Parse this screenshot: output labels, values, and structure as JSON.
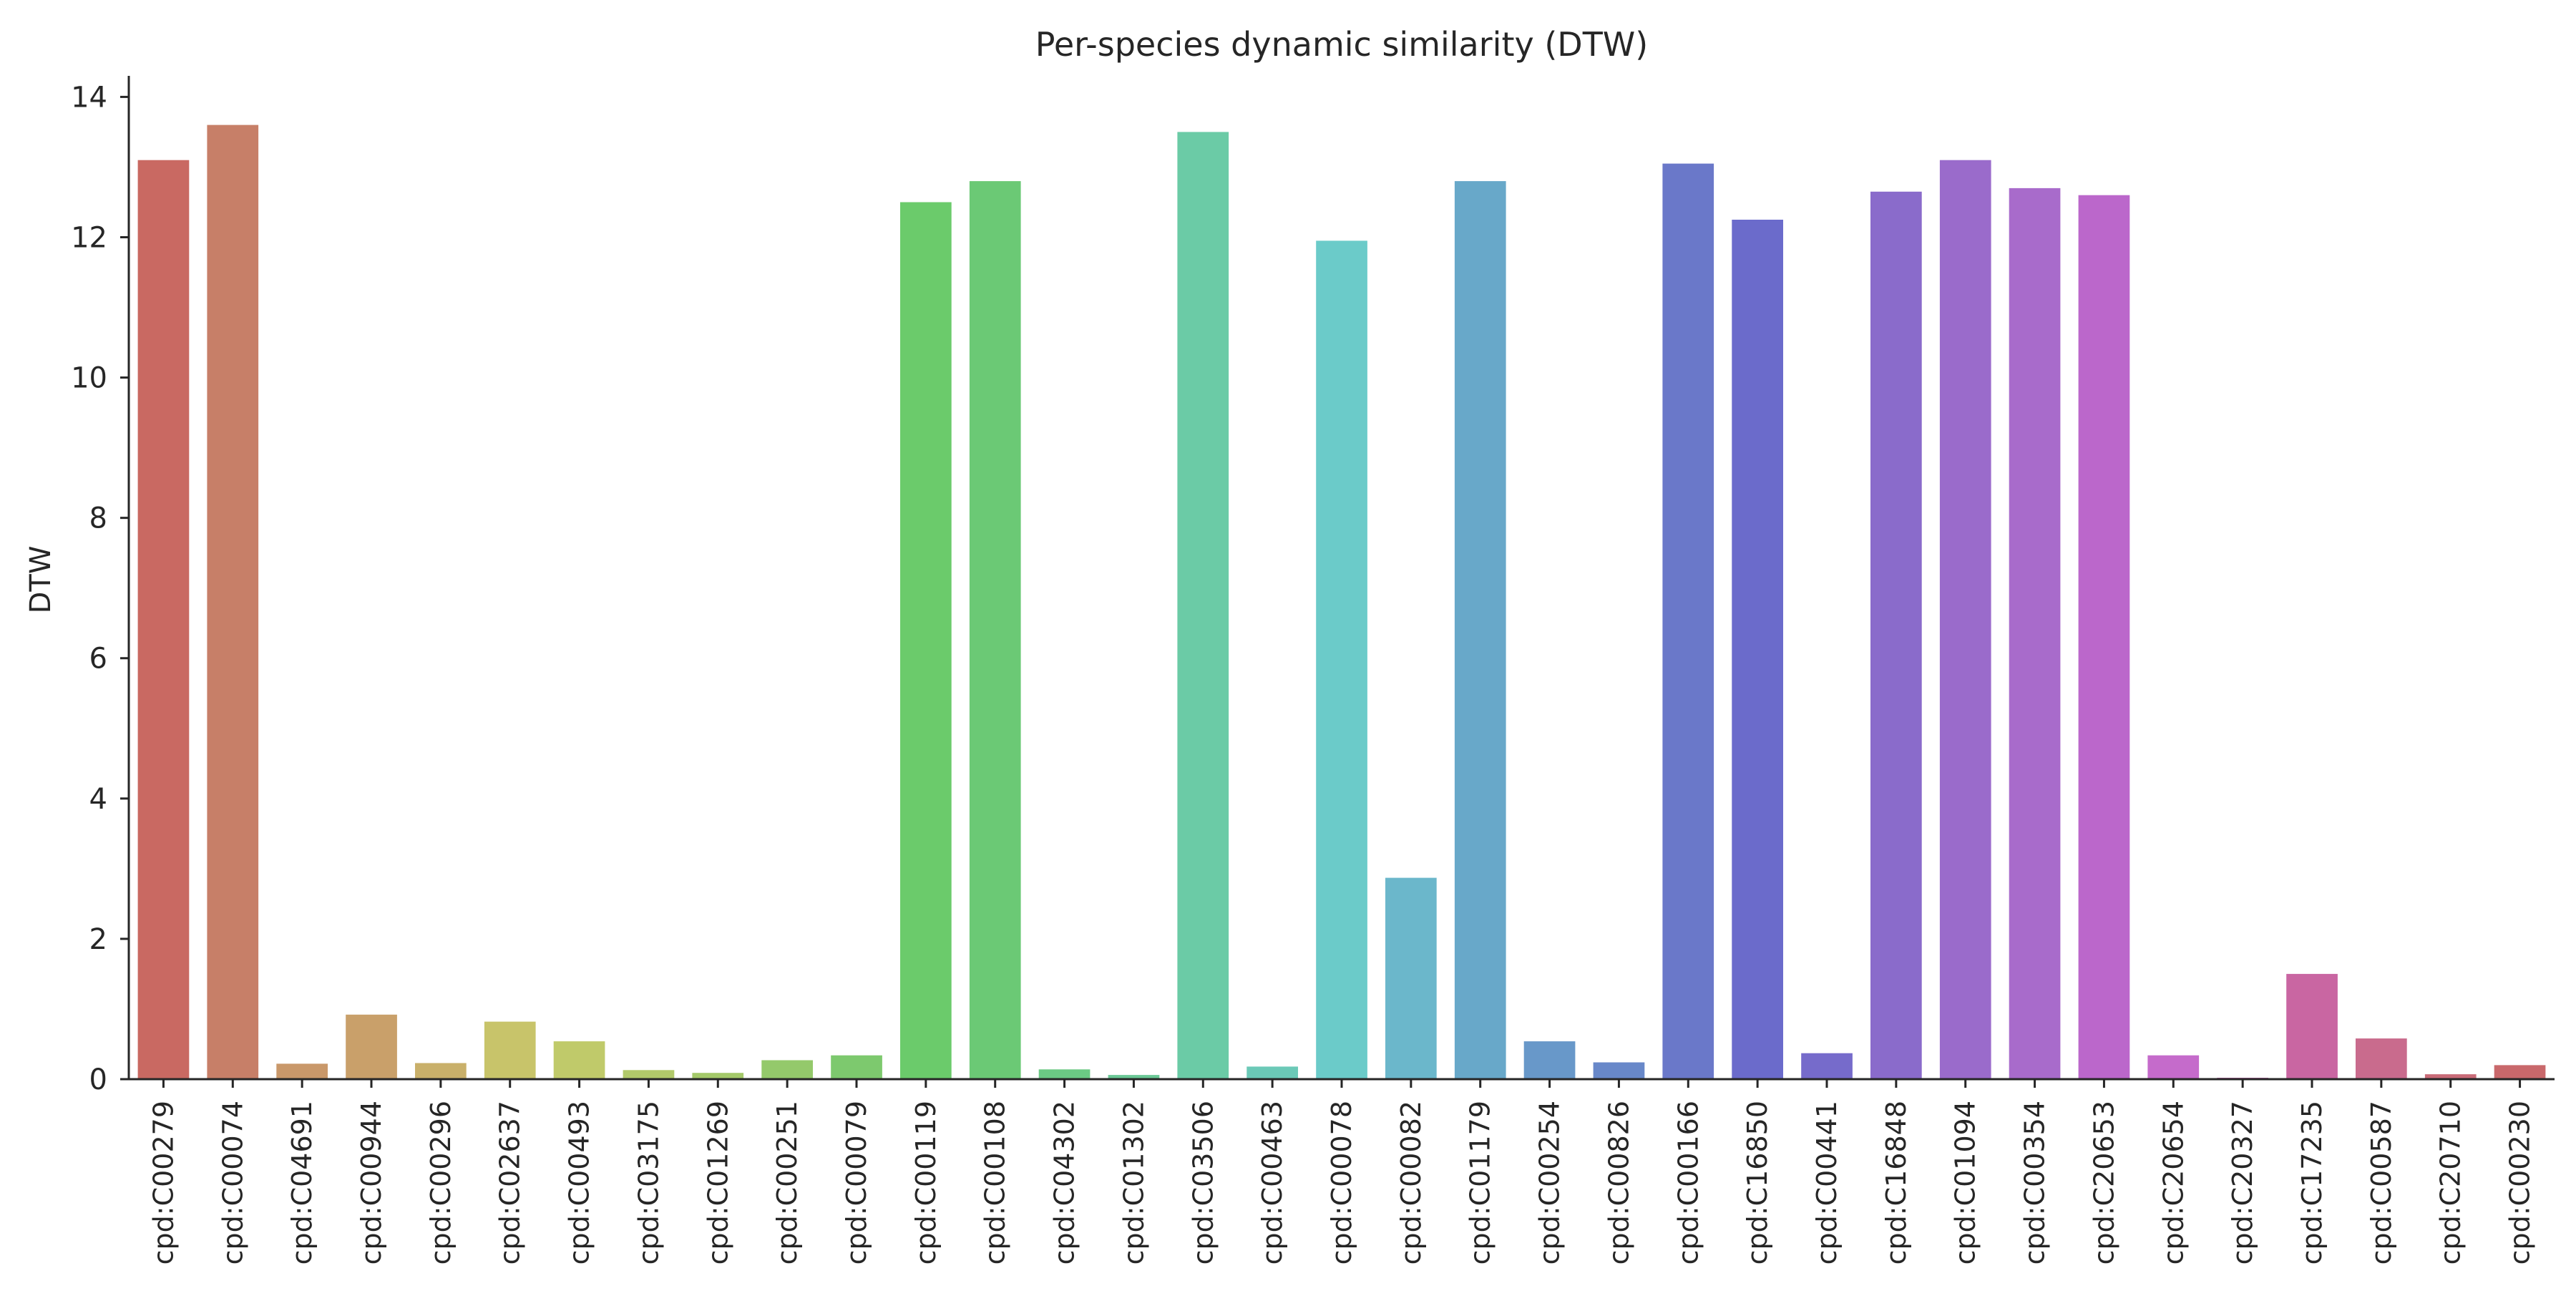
{
  "chart_data": {
    "type": "bar",
    "title": "Per-species dynamic similarity (DTW)",
    "xlabel": "",
    "ylabel": "DTW",
    "ylim": [
      0,
      14.3
    ],
    "yticks": [
      0,
      2,
      4,
      6,
      8,
      10,
      12,
      14
    ],
    "grid": false,
    "legend": "none",
    "categories": [
      "cpd:C00279",
      "cpd:C00074",
      "cpd:C04691",
      "cpd:C00944",
      "cpd:C00296",
      "cpd:C02637",
      "cpd:C00493",
      "cpd:C03175",
      "cpd:C01269",
      "cpd:C00251",
      "cpd:C00079",
      "cpd:C00119",
      "cpd:C00108",
      "cpd:C04302",
      "cpd:C01302",
      "cpd:C03506",
      "cpd:C00463",
      "cpd:C00078",
      "cpd:C00082",
      "cpd:C01179",
      "cpd:C00254",
      "cpd:C00826",
      "cpd:C00166",
      "cpd:C16850",
      "cpd:C00441",
      "cpd:C16848",
      "cpd:C01094",
      "cpd:C00354",
      "cpd:C20653",
      "cpd:C20654",
      "cpd:C20327",
      "cpd:C17235",
      "cpd:C00587",
      "cpd:C20710",
      "cpd:C00230"
    ],
    "values": [
      13.1,
      13.6,
      0.22,
      0.92,
      0.23,
      0.82,
      0.54,
      0.13,
      0.09,
      0.27,
      0.34,
      12.5,
      12.8,
      0.14,
      0.06,
      13.5,
      0.18,
      11.95,
      2.87,
      12.8,
      0.54,
      0.24,
      13.05,
      12.25,
      0.37,
      12.65,
      13.1,
      12.7,
      12.6,
      0.34,
      0.02,
      1.5,
      0.58,
      0.07,
      0.2
    ],
    "colors": [
      "#c96962",
      "#c77f68",
      "#c9986a",
      "#c9a06a",
      "#c9b06a",
      "#c8c46a",
      "#c0ca6a",
      "#b1c96a",
      "#a4c96a",
      "#94c96b",
      "#7dc96e",
      "#6bcb6b",
      "#6bc975",
      "#6bc984",
      "#6bc896",
      "#6bcba6",
      "#6bc9b7",
      "#6bcbc9",
      "#6bb7cb",
      "#68a8c9",
      "#6898c9",
      "#6888c9",
      "#6a78c9",
      "#6b6bcb",
      "#766bcb",
      "#8a6bcb",
      "#9a6bcb",
      "#a86bcb",
      "#bb67cb",
      "#c56bcb",
      "#c96bb5",
      "#c966a2",
      "#c96b8d",
      "#c96b78",
      "#c9686b"
    ]
  }
}
